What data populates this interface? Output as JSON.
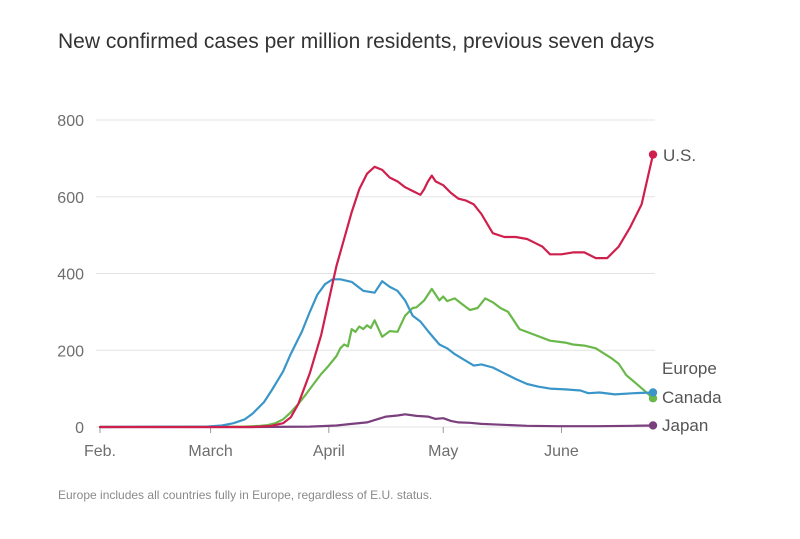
{
  "chart_data": {
    "type": "line",
    "title": "New confirmed cases per million residents, previous seven days",
    "note": "Europe includes all countries fully in Europe, regardless of E.U. status.",
    "xlabel": "",
    "ylabel": "",
    "x_range_days": [
      0,
      145
    ],
    "ylim": [
      0,
      800
    ],
    "y_ticks": [
      0,
      200,
      400,
      600,
      800
    ],
    "x_ticks": [
      {
        "label": "Feb.",
        "day": 0
      },
      {
        "label": "March",
        "day": 29
      },
      {
        "label": "April",
        "day": 60
      },
      {
        "label": "May",
        "day": 90
      },
      {
        "label": "June",
        "day": 121
      }
    ],
    "grid": true,
    "series": [
      {
        "name": "Japan",
        "label": "Japan",
        "color": "#7b3f7e",
        "x": [
          0,
          40,
          55,
          62,
          66,
          70,
          72,
          75,
          78,
          80,
          83,
          86,
          88,
          90,
          92,
          94,
          97,
          100,
          105,
          112,
          120,
          130,
          140,
          145
        ],
        "y": [
          0,
          0,
          1,
          4,
          8,
          12,
          18,
          27,
          30,
          33,
          29,
          27,
          21,
          23,
          16,
          12,
          11,
          8,
          6,
          3,
          2,
          2,
          3,
          4
        ]
      },
      {
        "name": "Canada",
        "label": "Canada",
        "color": "#6ab84a",
        "x": [
          0,
          38,
          42,
          44,
          46,
          48,
          50,
          52,
          54,
          56,
          58,
          60,
          62,
          63,
          64,
          65,
          66,
          67,
          68,
          69,
          70,
          71,
          72,
          74,
          76,
          78,
          80,
          81,
          82,
          83,
          85,
          87,
          89,
          90,
          91,
          93,
          95,
          97,
          99,
          101,
          103,
          105,
          107,
          110,
          114,
          118,
          122,
          124,
          127,
          130,
          134,
          136,
          138,
          141,
          145
        ],
        "y": [
          0,
          1,
          3,
          5,
          10,
          20,
          38,
          60,
          85,
          112,
          138,
          160,
          185,
          205,
          215,
          210,
          255,
          248,
          262,
          255,
          265,
          258,
          278,
          235,
          250,
          248,
          290,
          300,
          310,
          312,
          330,
          360,
          330,
          340,
          328,
          335,
          320,
          305,
          310,
          335,
          325,
          310,
          300,
          255,
          240,
          225,
          220,
          215,
          212,
          205,
          180,
          165,
          135,
          110,
          75
        ]
      },
      {
        "name": "Europe",
        "label": "Europe",
        "color": "#3a96c8",
        "x": [
          0,
          28,
          32,
          35,
          38,
          40,
          43,
          45,
          48,
          50,
          53,
          55,
          57,
          59,
          61,
          63,
          66,
          69,
          72,
          74,
          76,
          78,
          80,
          82,
          84,
          86,
          89,
          91,
          93,
          95,
          98,
          100,
          103,
          106,
          109,
          112,
          115,
          118,
          122,
          126,
          128,
          131,
          135,
          140,
          145
        ],
        "y": [
          0,
          1,
          4,
          10,
          20,
          35,
          65,
          95,
          145,
          190,
          250,
          300,
          345,
          372,
          385,
          385,
          378,
          355,
          350,
          380,
          365,
          355,
          330,
          290,
          275,
          250,
          215,
          205,
          190,
          178,
          160,
          163,
          155,
          140,
          125,
          112,
          105,
          100,
          98,
          95,
          88,
          90,
          85,
          88,
          90
        ]
      },
      {
        "name": "U.S.",
        "label": "U.S.",
        "color": "#cf1f4c",
        "x": [
          0,
          40,
          45,
          48,
          50,
          52,
          55,
          58,
          60,
          62,
          64,
          66,
          68,
          70,
          72,
          74,
          76,
          78,
          80,
          82,
          84,
          85,
          86,
          87,
          88,
          90,
          92,
          94,
          96,
          98,
          100,
          103,
          106,
          109,
          112,
          114,
          116,
          118,
          121,
          124,
          127,
          130,
          133,
          136,
          139,
          142,
          145
        ],
        "y": [
          0,
          0,
          3,
          10,
          25,
          60,
          140,
          240,
          330,
          420,
          490,
          560,
          620,
          660,
          678,
          670,
          650,
          640,
          625,
          615,
          605,
          620,
          640,
          655,
          640,
          630,
          610,
          595,
          590,
          580,
          555,
          505,
          495,
          495,
          490,
          480,
          470,
          450,
          450,
          455,
          455,
          440,
          440,
          470,
          520,
          580,
          710
        ]
      }
    ]
  }
}
